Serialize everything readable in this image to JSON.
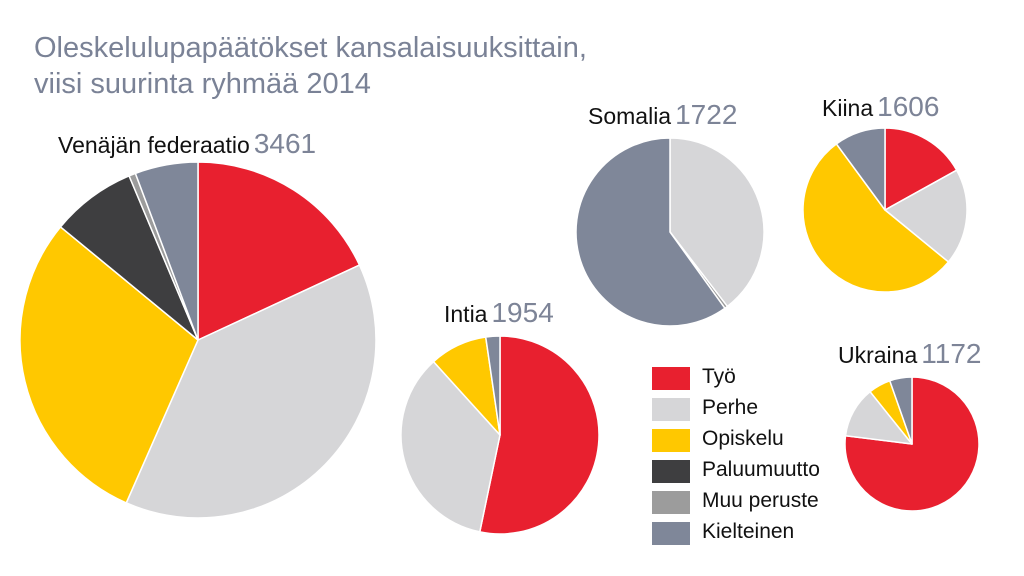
{
  "title": {
    "line1": "Oleskelulupapäätökset kansalaisuuksittain,",
    "line2": "viisi suurinta ryhmää 2014"
  },
  "colors": {
    "Työ": "#e8202f",
    "Perhe": "#d6d6d8",
    "Opiskelu": "#ffc800",
    "Paluumuutto": "#3e3e40",
    "Muu peruste": "#9c9c9c",
    "Kielteinen": "#7f8799"
  },
  "chart_data": {
    "type": "pie",
    "categories": [
      "Työ",
      "Perhe",
      "Opiskelu",
      "Paluumuutto",
      "Muu peruste",
      "Kielteinen"
    ],
    "pies": [
      {
        "name": "Venäjän federaatio",
        "total": "3461",
        "values": [
          626,
          1333,
          1016,
          267,
          21,
          198
        ]
      },
      {
        "name": "Intia",
        "total": "1954",
        "values": [
          1041,
          684,
          184,
          0,
          0,
          45
        ]
      },
      {
        "name": "Somalia",
        "total": "1722",
        "values": [
          0,
          681,
          0,
          0,
          9,
          1032
        ]
      },
      {
        "name": "Kiina",
        "total": "1606",
        "values": [
          272,
          305,
          867,
          0,
          0,
          162
        ]
      },
      {
        "name": "Ukraina",
        "total": "1172",
        "values": [
          902,
          144,
          63,
          0,
          0,
          63
        ]
      }
    ],
    "legend": [
      "Työ",
      "Perhe",
      "Opiskelu",
      "Paluumuutto",
      "Muu peruste",
      "Kielteinen"
    ]
  }
}
